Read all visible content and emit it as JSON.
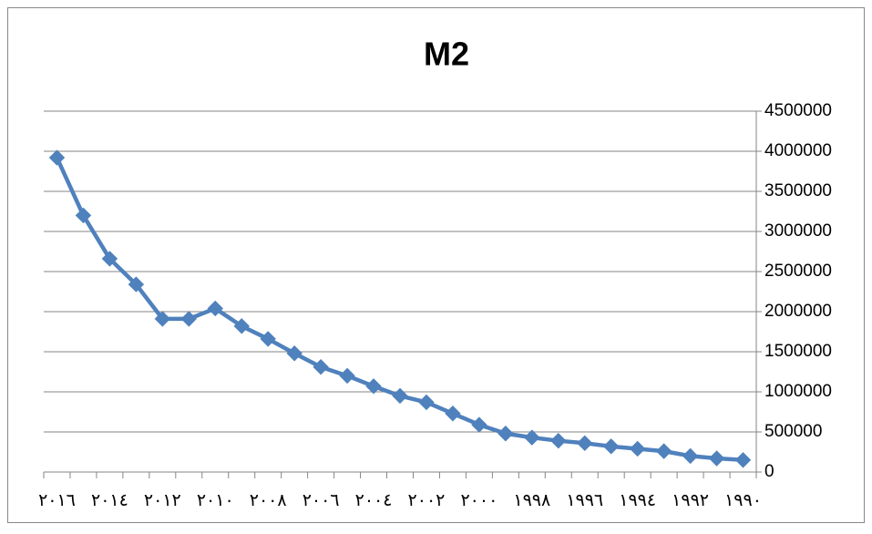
{
  "chart_data": {
    "type": "line",
    "title": "M2",
    "categories": [
      "٢٠١٦",
      null,
      "٢٠١٤",
      null,
      "٢٠١٢",
      null,
      "٢٠١٠",
      null,
      "٢٠٠٨",
      null,
      "٢٠٠٦",
      null,
      "٢٠٠٤",
      null,
      "٢٠٠٢",
      null,
      "٢٠٠٠",
      null,
      "١٩٩٨",
      null,
      "١٩٩٦",
      null,
      "١٩٩٤",
      null,
      "١٩٩٢",
      null,
      "١٩٩٠"
    ],
    "series": [
      {
        "name": "M2",
        "color": "#4f81bd",
        "values": [
          3920000,
          3200000,
          2660000,
          2340000,
          1910000,
          1910000,
          2040000,
          1820000,
          1660000,
          1480000,
          1310000,
          1200000,
          1070000,
          950000,
          870000,
          730000,
          590000,
          480000,
          430000,
          390000,
          360000,
          320000,
          290000,
          260000,
          200000,
          170000,
          150000
        ]
      }
    ],
    "ylim": [
      0,
      4500000
    ],
    "yticks": [
      0,
      500000,
      1000000,
      1500000,
      2000000,
      2500000,
      3000000,
      3500000,
      4000000,
      4500000
    ],
    "yaxis_side": "right",
    "grid": true
  }
}
